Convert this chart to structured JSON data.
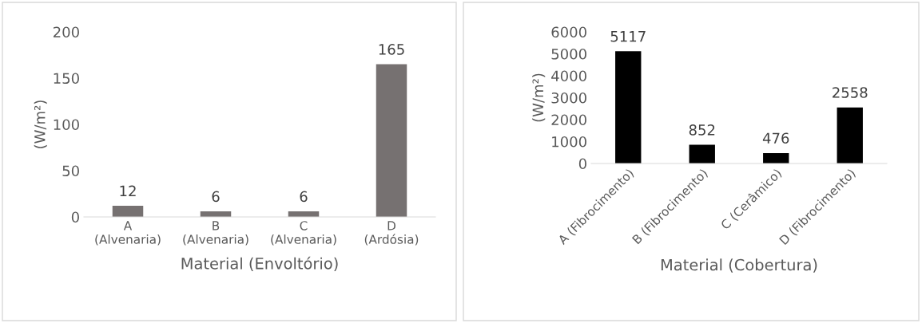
{
  "chart_data": [
    {
      "type": "bar",
      "xlabel": "Material (Envoltório)",
      "ylabel": "(W/m²)",
      "categories": [
        "A\n(Alvenaria)",
        "B\n(Alvenaria)",
        "C\n(Alvenaria)",
        "D\n(Ardósia)"
      ],
      "values": [
        12,
        6,
        6,
        165
      ],
      "color": "#767171",
      "ylim": [
        0,
        200
      ],
      "yticks": [
        0,
        50,
        100,
        150,
        200
      ],
      "data_labels": true,
      "grid": false
    },
    {
      "type": "bar",
      "xlabel": "Material (Cobertura)",
      "ylabel": "(W/m²)",
      "categories": [
        "A (Fibrocimento)",
        "B (Fibrocimento)",
        "C (Cerâmico)",
        "D (Fibrocimento)"
      ],
      "values": [
        5117,
        852,
        476,
        2558
      ],
      "color": "#000000",
      "ylim": [
        0,
        6000
      ],
      "yticks": [
        0,
        1000,
        2000,
        3000,
        4000,
        5000,
        6000
      ],
      "data_labels": true,
      "grid": false
    }
  ]
}
